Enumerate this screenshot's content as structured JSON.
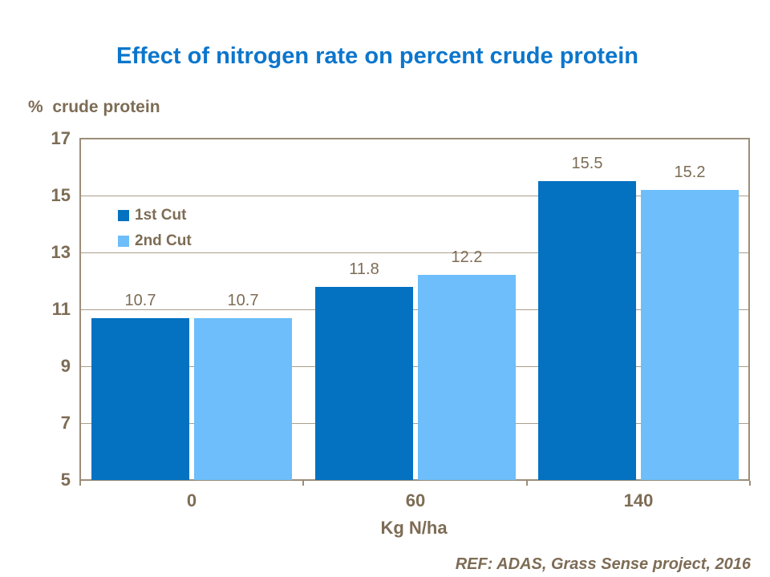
{
  "title": "Effect of nitrogen rate on percent crude protein",
  "y_axis_title": "%  crude protein",
  "x_axis_title": "Kg N/ha",
  "footer_ref": "REF: ADAS, Grass Sense project, 2016",
  "colors": {
    "title_blue": "#0C76CC",
    "text_brown": "#7D6C55",
    "plot_border": "#9C8D79",
    "gridline": "#AB9E8C",
    "series_1st_cut": "#0572C1",
    "series_2nd_cut": "#6DBEFA",
    "background": "#FFFFFF"
  },
  "chart_data": {
    "type": "bar",
    "title": "Effect of nitrogen rate on percent crude protein",
    "xlabel": "Kg N/ha",
    "ylabel": "% crude protein",
    "categories": [
      "0",
      "60",
      "140"
    ],
    "series": [
      {
        "name": "1st Cut",
        "color": "#0572C1",
        "values": [
          10.7,
          11.8,
          15.5
        ]
      },
      {
        "name": "2nd Cut",
        "color": "#6DBEFA",
        "values": [
          10.7,
          12.2,
          15.2
        ]
      }
    ],
    "bar_value_labels": [
      [
        "10.7",
        "11.8",
        "15.5"
      ],
      [
        "10.7",
        "12.2",
        "15.2"
      ]
    ],
    "ylim": [
      5,
      17
    ],
    "yticks": [
      17,
      15,
      13,
      11,
      9,
      7,
      5
    ],
    "grid": true,
    "legend_position": "inside-top-left"
  }
}
